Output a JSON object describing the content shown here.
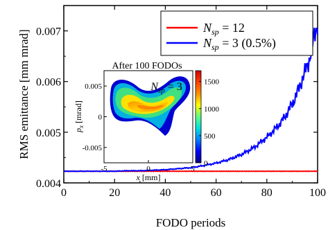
{
  "chart_data": [
    {
      "type": "line",
      "title": "",
      "xlabel": "FODO periods",
      "ylabel": "RMS emittance   [mm mrad]",
      "xlim": [
        0,
        100
      ],
      "ylim": [
        0.004,
        0.0075
      ],
      "xticks": [
        0,
        20,
        40,
        60,
        80,
        100
      ],
      "xtick_labels": [
        "0",
        "20",
        "40",
        "60",
        "80",
        "100"
      ],
      "yticks": [
        0.004,
        0.005,
        0.006,
        0.007
      ],
      "ytick_labels": [
        "0.004",
        "0.005",
        "0.006",
        "0.007"
      ],
      "grid": false,
      "legend_position": "top-right",
      "series": [
        {
          "name": "N_sp = 12",
          "label_main": "N",
          "label_sub": "sp",
          "label_rest": " = 12",
          "color": "#ff0000",
          "x": [
            0,
            10,
            20,
            30,
            40,
            50,
            60,
            70,
            80,
            90,
            100
          ],
          "values": [
            0.00423,
            0.00423,
            0.00423,
            0.00423,
            0.00423,
            0.00423,
            0.00423,
            0.00423,
            0.00423,
            0.00423,
            0.00423
          ]
        },
        {
          "name": "N_sp = 3 (0.5%)",
          "label_main": "N",
          "label_sub": "sp",
          "label_rest": " = 3 (0.5%)",
          "color": "#0000ff",
          "x": [
            0,
            5,
            10,
            15,
            20,
            25,
            30,
            35,
            40,
            45,
            50,
            55,
            60,
            65,
            70,
            75,
            80,
            83,
            86,
            88,
            90,
            92,
            94,
            96,
            97,
            98,
            99,
            100
          ],
          "values": [
            0.00423,
            0.00423,
            0.00423,
            0.00423,
            0.00423,
            0.00424,
            0.00424,
            0.00425,
            0.00426,
            0.00428,
            0.0043,
            0.00434,
            0.00439,
            0.00446,
            0.00456,
            0.0047,
            0.0049,
            0.00505,
            0.00522,
            0.00538,
            0.00556,
            0.00578,
            0.00605,
            0.00632,
            0.0065,
            0.0067,
            0.007,
            0.00715
          ]
        }
      ]
    },
    {
      "type": "heatmap",
      "title": "After 100 FODOs",
      "annotation_main": "N",
      "annotation_sub": "sp",
      "annotation_rest": " = 3",
      "xlabel_main": "x",
      "xlabel_rest": " [mm]",
      "ylabel_main": "p",
      "ylabel_sub": "x",
      "ylabel_rest": " [mrad]",
      "xlim": [
        -5,
        5
      ],
      "ylim": [
        -0.0075,
        0.0075
      ],
      "xticks": [
        -5,
        0,
        5
      ],
      "xtick_labels": [
        "-5",
        "0",
        "5"
      ],
      "yticks": [
        0.005,
        0,
        -0.005
      ],
      "ytick_labels": [
        "0.005",
        "0",
        "-0.005"
      ],
      "colorbar_range": [
        0,
        1700
      ],
      "colorbar_ticks": [
        0,
        500,
        1000,
        1500
      ],
      "colorbar_tick_labels": [
        "0",
        "500",
        "1000",
        "1500"
      ],
      "colormap": [
        "#00007f",
        "#0000ff",
        "#0080ff",
        "#00e0e0",
        "#60ff80",
        "#ffff00",
        "#ff9000",
        "#ff4000",
        "#d00000"
      ]
    }
  ]
}
